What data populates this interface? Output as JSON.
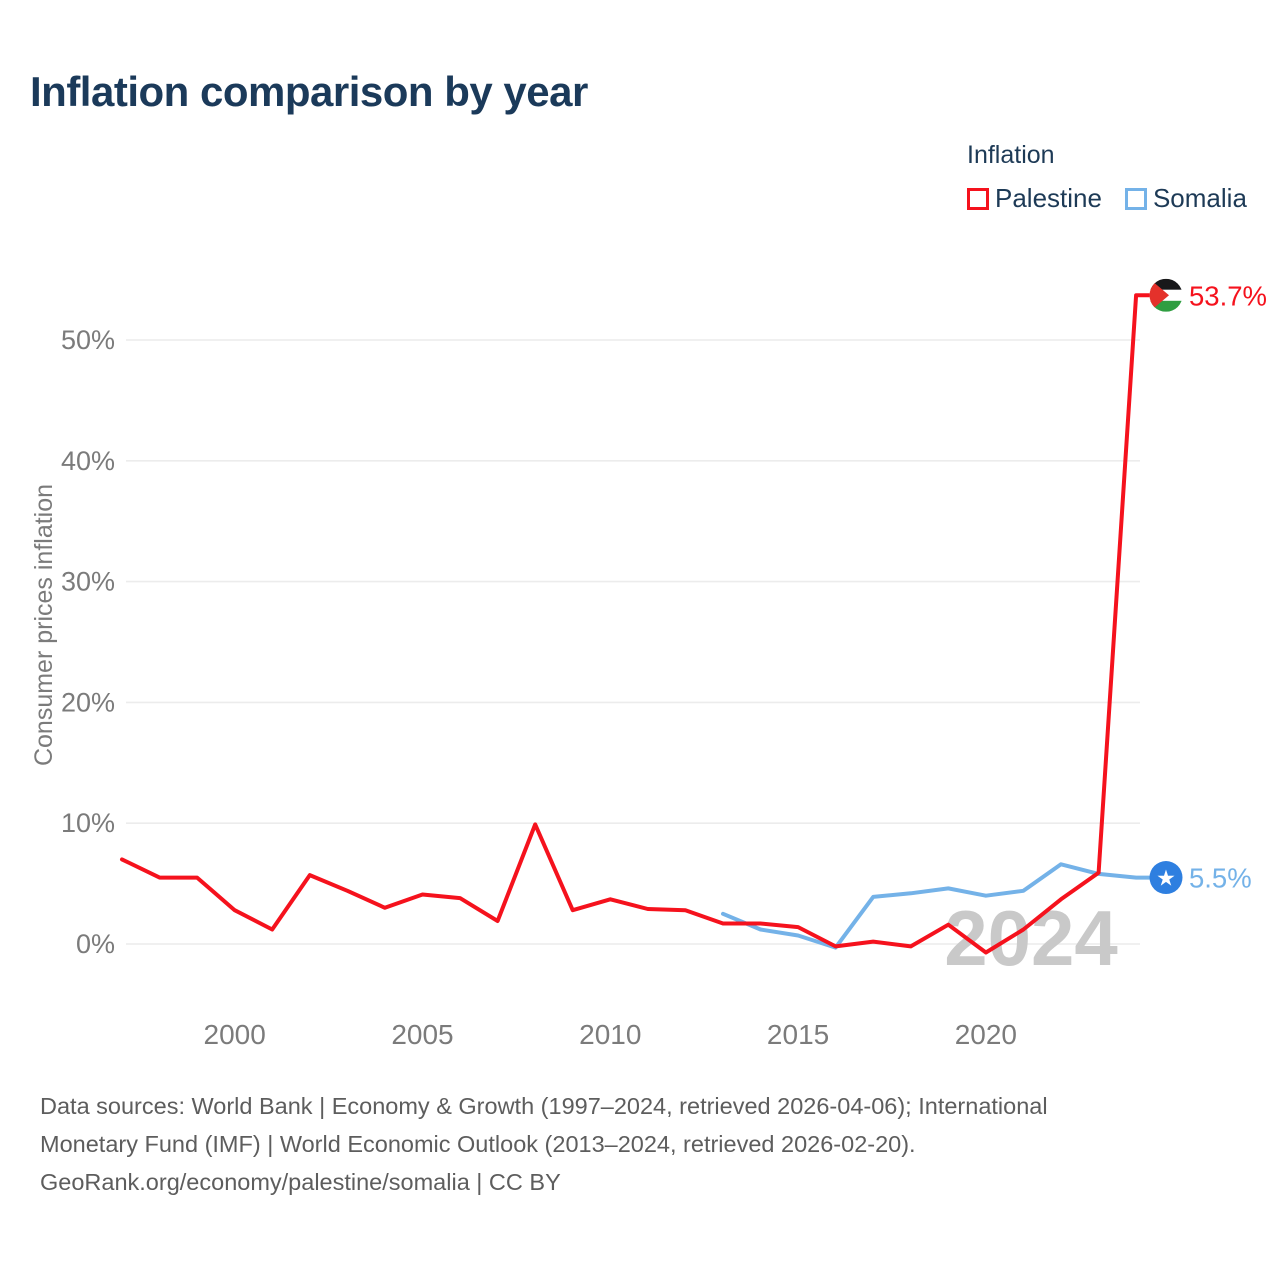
{
  "title": "Inflation comparison by year",
  "legend": {
    "title": "Inflation",
    "items": [
      {
        "label": "Palestine",
        "color": "#f5121d"
      },
      {
        "label": "Somalia",
        "color": "#74b2e8"
      }
    ]
  },
  "watermark": "2024",
  "chart_data": {
    "type": "line",
    "title": "Inflation comparison by year",
    "xlabel": "",
    "ylabel": "Consumer prices inflation",
    "xlim": [
      1997,
      2024
    ],
    "ylim": [
      -2,
      55
    ],
    "x_ticks": [
      2000,
      2005,
      2010,
      2015,
      2020
    ],
    "y_ticks": [
      0,
      10,
      20,
      30,
      40,
      50
    ],
    "y_tick_suffix": "%",
    "grid": "horizontal",
    "legend_position": "top-right",
    "series": [
      {
        "name": "Palestine",
        "color": "#f5121d",
        "end_label": "53.7%",
        "end_marker": "palestine-flag",
        "x": [
          1997,
          1998,
          1999,
          2000,
          2001,
          2002,
          2003,
          2004,
          2005,
          2006,
          2007,
          2008,
          2009,
          2010,
          2011,
          2012,
          2013,
          2014,
          2015,
          2016,
          2017,
          2018,
          2019,
          2020,
          2021,
          2022,
          2023,
          2024
        ],
        "values": [
          7.0,
          5.5,
          5.5,
          2.8,
          1.2,
          5.7,
          4.4,
          3.0,
          4.1,
          3.8,
          1.9,
          9.9,
          2.8,
          3.7,
          2.9,
          2.8,
          1.7,
          1.7,
          1.4,
          -0.2,
          0.2,
          -0.2,
          1.6,
          -0.7,
          1.2,
          3.7,
          5.9,
          53.7
        ]
      },
      {
        "name": "Somalia",
        "color": "#74b2e8",
        "end_label": "5.5%",
        "end_marker": "somalia-flag",
        "x": [
          2013,
          2014,
          2015,
          2016,
          2017,
          2018,
          2019,
          2020,
          2021,
          2022,
          2023,
          2024
        ],
        "values": [
          2.5,
          1.2,
          0.7,
          -0.3,
          3.9,
          4.2,
          4.6,
          4.0,
          4.4,
          6.6,
          5.8,
          5.5
        ]
      }
    ]
  },
  "footer": {
    "lines": [
      "Data sources: World Bank | Economy & Growth (1997–2024, retrieved 2026-04-06); International",
      "Monetary Fund (IMF) | World Economic Outlook (2013–2024, retrieved 2026-02-20).",
      "GeoRank.org/economy/palestine/somalia | CC BY"
    ]
  }
}
